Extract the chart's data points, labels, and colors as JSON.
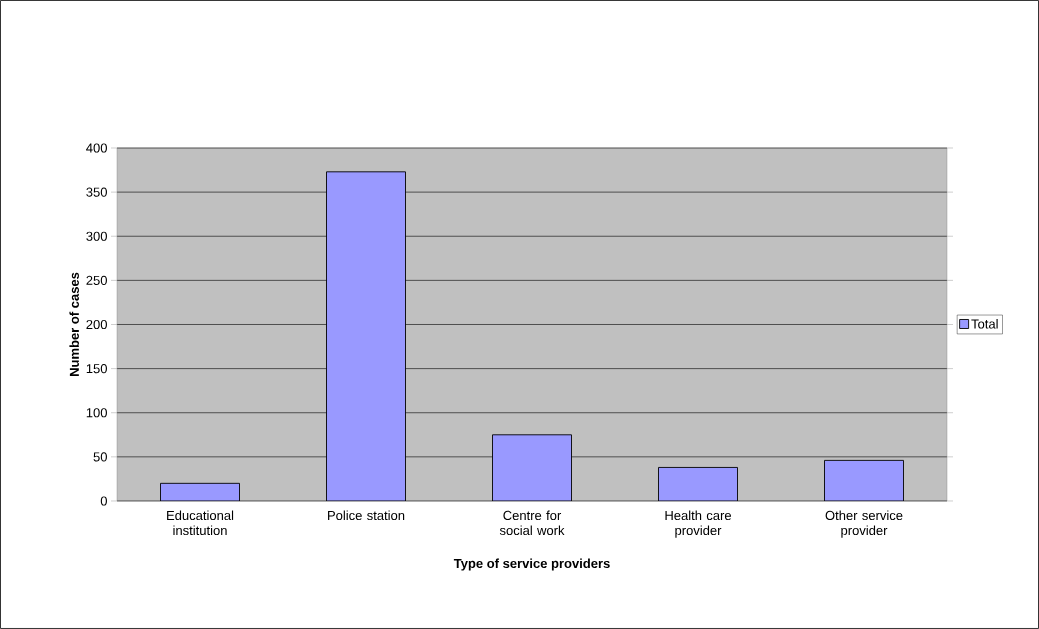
{
  "chart_data": {
    "type": "bar",
    "xlabel": "Type of service providers",
    "ylabel": "Number of cases",
    "categories": [
      "Educational institution",
      "Police station",
      "Centre for social work",
      "Health care provider",
      "Other service provider"
    ],
    "series": [
      {
        "name": "Total",
        "color": "#9999ff",
        "values": [
          20,
          373,
          75,
          38,
          46
        ]
      }
    ],
    "ylim": [
      0,
      400
    ],
    "yticks": [
      0,
      50,
      100,
      150,
      200,
      250,
      300,
      350,
      400
    ],
    "grid": "y",
    "legend": "right"
  }
}
